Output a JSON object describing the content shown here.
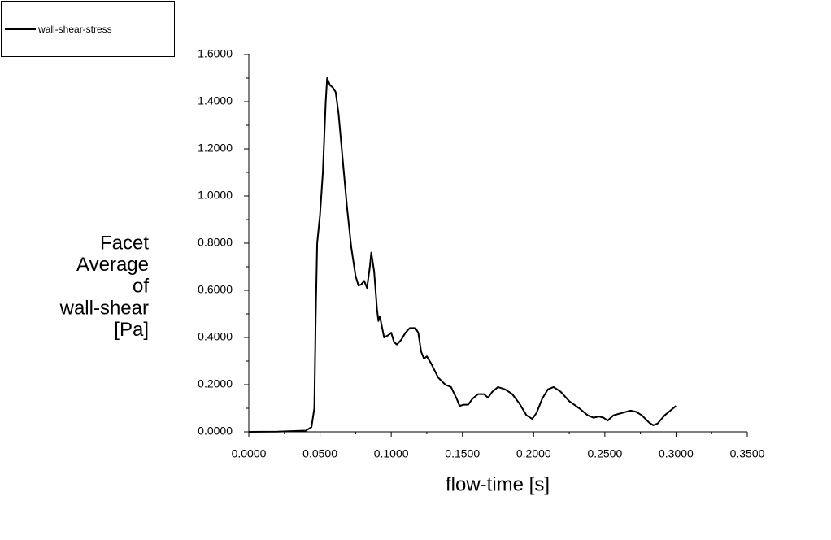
{
  "chart_data": {
    "type": "line",
    "xlabel": "flow-time [s]",
    "ylabel": [
      "Facet",
      "Average",
      "of",
      "wall-shear",
      "[Pa]"
    ],
    "xlim": [
      0,
      0.35
    ],
    "ylim": [
      0,
      1.6
    ],
    "xticks": [
      {
        "value": 0,
        "label": "0.0000"
      },
      {
        "value": 0.05,
        "label": "0.0500"
      },
      {
        "value": 0.1,
        "label": "0.1000"
      },
      {
        "value": 0.15,
        "label": "0.1500"
      },
      {
        "value": 0.2,
        "label": "0.2000"
      },
      {
        "value": 0.25,
        "label": "0.2500"
      },
      {
        "value": 0.3,
        "label": "0.3000"
      },
      {
        "value": 0.35,
        "label": "0.3500"
      }
    ],
    "yticks": [
      {
        "value": 0,
        "label": "0.0000"
      },
      {
        "value": 0.2,
        "label": "0.2000"
      },
      {
        "value": 0.4,
        "label": "0.4000"
      },
      {
        "value": 0.6,
        "label": "0.6000"
      },
      {
        "value": 0.8,
        "label": "0.8000"
      },
      {
        "value": 1.0,
        "label": "1.0000"
      },
      {
        "value": 1.2,
        "label": "1.2000"
      },
      {
        "value": 1.4,
        "label": "1.4000"
      },
      {
        "value": 1.6,
        "label": "1.6000"
      }
    ],
    "legend": "top-left",
    "x": [
      0,
      0.02,
      0.04,
      0.044,
      0.046,
      0.047,
      0.048,
      0.05,
      0.052,
      0.054,
      0.055,
      0.057,
      0.059,
      0.061,
      0.063,
      0.066,
      0.069,
      0.072,
      0.075,
      0.077,
      0.079,
      0.081,
      0.083,
      0.085,
      0.086,
      0.088,
      0.09,
      0.091,
      0.092,
      0.093,
      0.095,
      0.098,
      0.1,
      0.102,
      0.104,
      0.107,
      0.11,
      0.113,
      0.117,
      0.119,
      0.121,
      0.123,
      0.125,
      0.128,
      0.133,
      0.138,
      0.142,
      0.146,
      0.148,
      0.151,
      0.154,
      0.157,
      0.161,
      0.165,
      0.168,
      0.171,
      0.175,
      0.18,
      0.185,
      0.19,
      0.195,
      0.199,
      0.202,
      0.206,
      0.21,
      0.214,
      0.219,
      0.225,
      0.232,
      0.238,
      0.242,
      0.246,
      0.249,
      0.252,
      0.256,
      0.262,
      0.268,
      0.272,
      0.276,
      0.281,
      0.284,
      0.287,
      0.292,
      0.296,
      0.3
    ],
    "series": [
      {
        "name": "wall-shear-stress",
        "color": "#000000",
        "values": [
          0,
          0.001,
          0.005,
          0.02,
          0.1,
          0.5,
          0.8,
          0.92,
          1.1,
          1.4,
          1.5,
          1.47,
          1.46,
          1.44,
          1.35,
          1.15,
          0.95,
          0.78,
          0.66,
          0.62,
          0.625,
          0.64,
          0.61,
          0.7,
          0.76,
          0.68,
          0.52,
          0.47,
          0.49,
          0.46,
          0.4,
          0.41,
          0.42,
          0.38,
          0.37,
          0.39,
          0.42,
          0.44,
          0.44,
          0.42,
          0.34,
          0.31,
          0.32,
          0.29,
          0.23,
          0.2,
          0.19,
          0.14,
          0.11,
          0.115,
          0.115,
          0.14,
          0.16,
          0.16,
          0.145,
          0.17,
          0.19,
          0.18,
          0.16,
          0.12,
          0.07,
          0.055,
          0.08,
          0.14,
          0.18,
          0.19,
          0.17,
          0.13,
          0.1,
          0.07,
          0.06,
          0.065,
          0.06,
          0.048,
          0.07,
          0.08,
          0.09,
          0.085,
          0.07,
          0.04,
          0.028,
          0.035,
          0.07,
          0.09,
          0.11
        ]
      }
    ]
  }
}
